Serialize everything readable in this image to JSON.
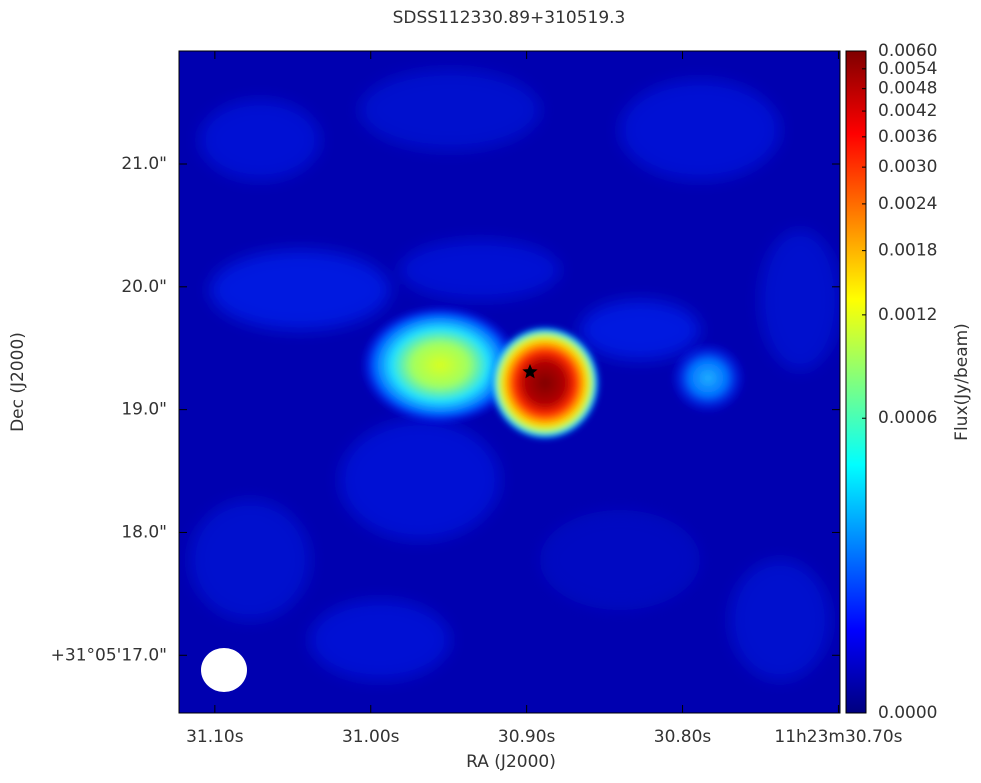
{
  "chart_data": {
    "type": "image",
    "title": "SDSS112330.89+310519.3",
    "x_label": "RA (J2000)",
    "y_label": "Dec (J2000)",
    "xlim": [
      31.123,
      30.699
    ],
    "xticks": [
      {
        "value": 31.1,
        "label": "31.10s"
      },
      {
        "value": 31.0,
        "label": "31.00s"
      },
      {
        "value": 30.9,
        "label": "30.90s"
      },
      {
        "value": 30.8,
        "label": "30.80s"
      },
      {
        "value": 30.7,
        "label": "11h23m30.70s"
      }
    ],
    "ylim": [
      16.53,
      21.92
    ],
    "yticks": [
      {
        "value": 17,
        "label": "+31°05'17.0\""
      },
      {
        "value": 18,
        "label": "18.0\""
      },
      {
        "value": 19,
        "label": "19.0\""
      },
      {
        "value": 20,
        "label": "20.0\""
      },
      {
        "value": 21,
        "label": "21.0\""
      }
    ],
    "colorbar": {
      "label": "Flux(Jy/beam)",
      "scale": "log",
      "colormap": "jet",
      "lim": [
        0,
        0.006
      ],
      "ticks": [
        {
          "value": 0,
          "label": "0.0000"
        },
        {
          "value": 0.0006,
          "label": "0.0006"
        },
        {
          "value": 0.0012,
          "label": "0.0012"
        },
        {
          "value": 0.0018,
          "label": "0.0018"
        },
        {
          "value": 0.0024,
          "label": "0.0024"
        },
        {
          "value": 0.003,
          "label": "0.0030"
        },
        {
          "value": 0.0036,
          "label": "0.0036"
        },
        {
          "value": 0.0042,
          "label": "0.0042"
        },
        {
          "value": 0.0048,
          "label": "0.0048"
        },
        {
          "value": 0.0054,
          "label": "0.0054"
        },
        {
          "value": 0.006,
          "label": "0.0060"
        }
      ]
    }
  }
}
